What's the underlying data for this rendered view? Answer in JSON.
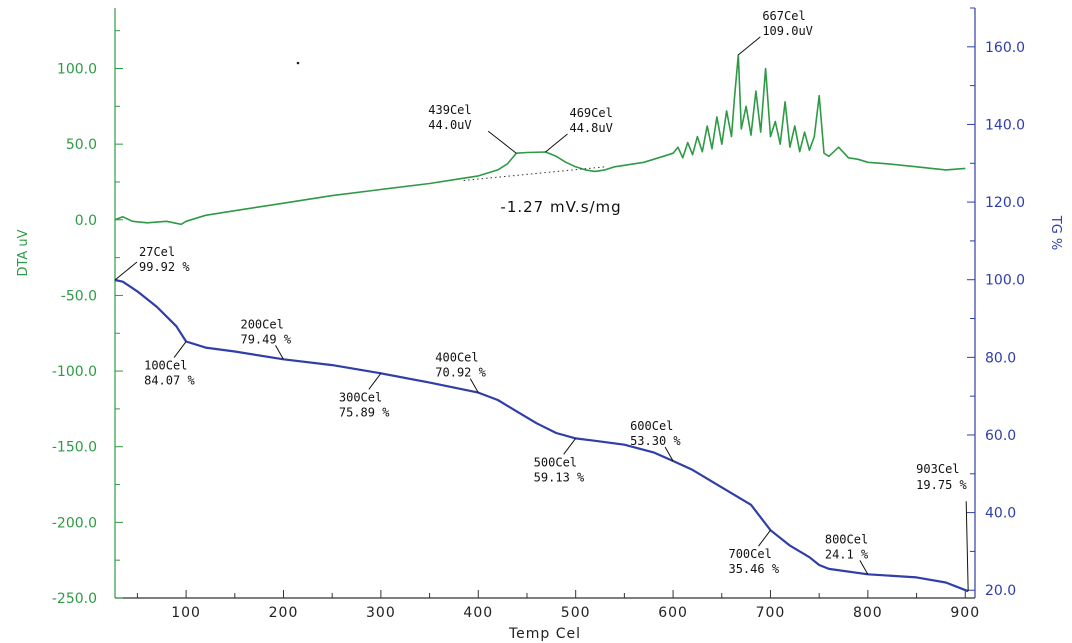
{
  "chart_data": {
    "type": "line",
    "title": "",
    "xlabel": "Temp Cel",
    "ylabel_left": "DTA uV",
    "ylabel_right": "TG %",
    "xlim": [
      27,
      910
    ],
    "ylim_left": [
      -250,
      140
    ],
    "ylim_right": [
      18,
      170
    ],
    "x_ticks": [
      "100",
      "200",
      "300",
      "400",
      "500",
      "600",
      "700",
      "800",
      "900"
    ],
    "left_ticks": [
      "100.0",
      "50.0",
      "0.0",
      "-50.0",
      "-100.0",
      "-150.0",
      "-200.0",
      "-250.0"
    ],
    "right_ticks": [
      "160.0",
      "140.0",
      "120.0",
      "100.0",
      "80.0",
      "60.0",
      "40.0",
      "20.0"
    ],
    "grid": false,
    "colors": {
      "dta": "#2e9a45",
      "tg": "#2f3ea8",
      "axis_left": "#2e9a45",
      "axis_right": "#2f3ea8"
    },
    "series": [
      {
        "name": "DTA uV",
        "axis": "left",
        "x": [
          27,
          35,
          45,
          60,
          80,
          95,
          100,
          120,
          150,
          200,
          250,
          300,
          350,
          380,
          400,
          420,
          430,
          439,
          450,
          469,
          480,
          490,
          500,
          510,
          520,
          530,
          540,
          550,
          560,
          570,
          580,
          590,
          600,
          605,
          610,
          615,
          620,
          625,
          630,
          635,
          640,
          645,
          650,
          655,
          660,
          663,
          667,
          670,
          675,
          680,
          685,
          690,
          695,
          700,
          705,
          710,
          715,
          720,
          725,
          730,
          735,
          740,
          745,
          750,
          755,
          760,
          770,
          780,
          790,
          800,
          820,
          850,
          880,
          900
        ],
        "values": [
          0,
          2,
          -1,
          -2,
          -1,
          -3,
          -1,
          3,
          6,
          11,
          16,
          20,
          24,
          27,
          29,
          33,
          37,
          44,
          44.5,
          44.8,
          42,
          38,
          35,
          33,
          32,
          33,
          35,
          36,
          37,
          38,
          40,
          42,
          44,
          48,
          41,
          51,
          43,
          55,
          45,
          62,
          47,
          68,
          50,
          72,
          55,
          80,
          109,
          60,
          75,
          56,
          85,
          58,
          100,
          55,
          65,
          50,
          78,
          48,
          62,
          45,
          58,
          46,
          55,
          82,
          44,
          42,
          48,
          41,
          40,
          38,
          37,
          35,
          33,
          34
        ]
      },
      {
        "name": "TG %",
        "axis": "right",
        "x": [
          27,
          35,
          50,
          70,
          90,
          100,
          120,
          150,
          200,
          250,
          300,
          350,
          400,
          420,
          440,
          460,
          480,
          500,
          520,
          550,
          580,
          600,
          620,
          640,
          660,
          680,
          700,
          720,
          740,
          750,
          760,
          800,
          850,
          880,
          903
        ],
        "values": [
          99.92,
          99.5,
          97,
          93,
          88,
          84.07,
          82.5,
          81.5,
          79.49,
          78,
          75.89,
          73.5,
          70.92,
          69,
          66,
          63,
          60.5,
          59.13,
          58.5,
          57.5,
          55.5,
          53.3,
          51,
          48,
          45,
          42,
          35.46,
          31.5,
          28.5,
          26.5,
          25.5,
          24.1,
          23.3,
          22,
          19.75
        ]
      }
    ],
    "annotations": [
      {
        "line1": "27Cel",
        "line2": "99.92 %",
        "x": 27,
        "axis": "right",
        "y": 99.92,
        "position": "upper-right"
      },
      {
        "line1": "100Cel",
        "line2": "84.07 %",
        "x": 100,
        "axis": "right",
        "y": 84.07,
        "position": "below-left"
      },
      {
        "line1": "200Cel",
        "line2": "79.49 %",
        "x": 200,
        "axis": "right",
        "y": 79.49,
        "position": "above"
      },
      {
        "line1": "300Cel",
        "line2": "75.89 %",
        "x": 300,
        "axis": "right",
        "y": 75.89,
        "position": "below-left"
      },
      {
        "line1": "400Cel",
        "line2": "70.92 %",
        "x": 400,
        "axis": "right",
        "y": 70.92,
        "position": "above"
      },
      {
        "line1": "500Cel",
        "line2": "59.13 %",
        "x": 500,
        "axis": "right",
        "y": 59.13,
        "position": "below-left"
      },
      {
        "line1": "600Cel",
        "line2": "53.30 %",
        "x": 600,
        "axis": "right",
        "y": 53.3,
        "position": "above"
      },
      {
        "line1": "700Cel",
        "line2": "35.46 %",
        "x": 700,
        "axis": "right",
        "y": 35.46,
        "position": "below-left"
      },
      {
        "line1": "800Cel",
        "line2": "24.1 %",
        "x": 800,
        "axis": "right",
        "y": 24.1,
        "position": "above"
      },
      {
        "line1": "903Cel",
        "line2": "19.75 %",
        "x": 903,
        "axis": "right",
        "y": 19.75,
        "position": "upper-left"
      },
      {
        "line1": "439Cel",
        "line2": "44.0uV",
        "x": 439,
        "axis": "left",
        "y": 44.0,
        "position": "upper-left"
      },
      {
        "line1": "469Cel",
        "line2": "44.8uV",
        "x": 469,
        "axis": "left",
        "y": 44.8,
        "position": "upper-right"
      },
      {
        "line1": "667Cel",
        "line2": "109.0uV",
        "x": 667,
        "axis": "left",
        "y": 109.0,
        "position": "upper-right"
      }
    ],
    "baseline": {
      "x": [
        385,
        530
      ],
      "values": [
        26,
        35
      ],
      "label": "-1.27 mV.s/mg",
      "label_x": 485,
      "label_y": 5
    }
  }
}
